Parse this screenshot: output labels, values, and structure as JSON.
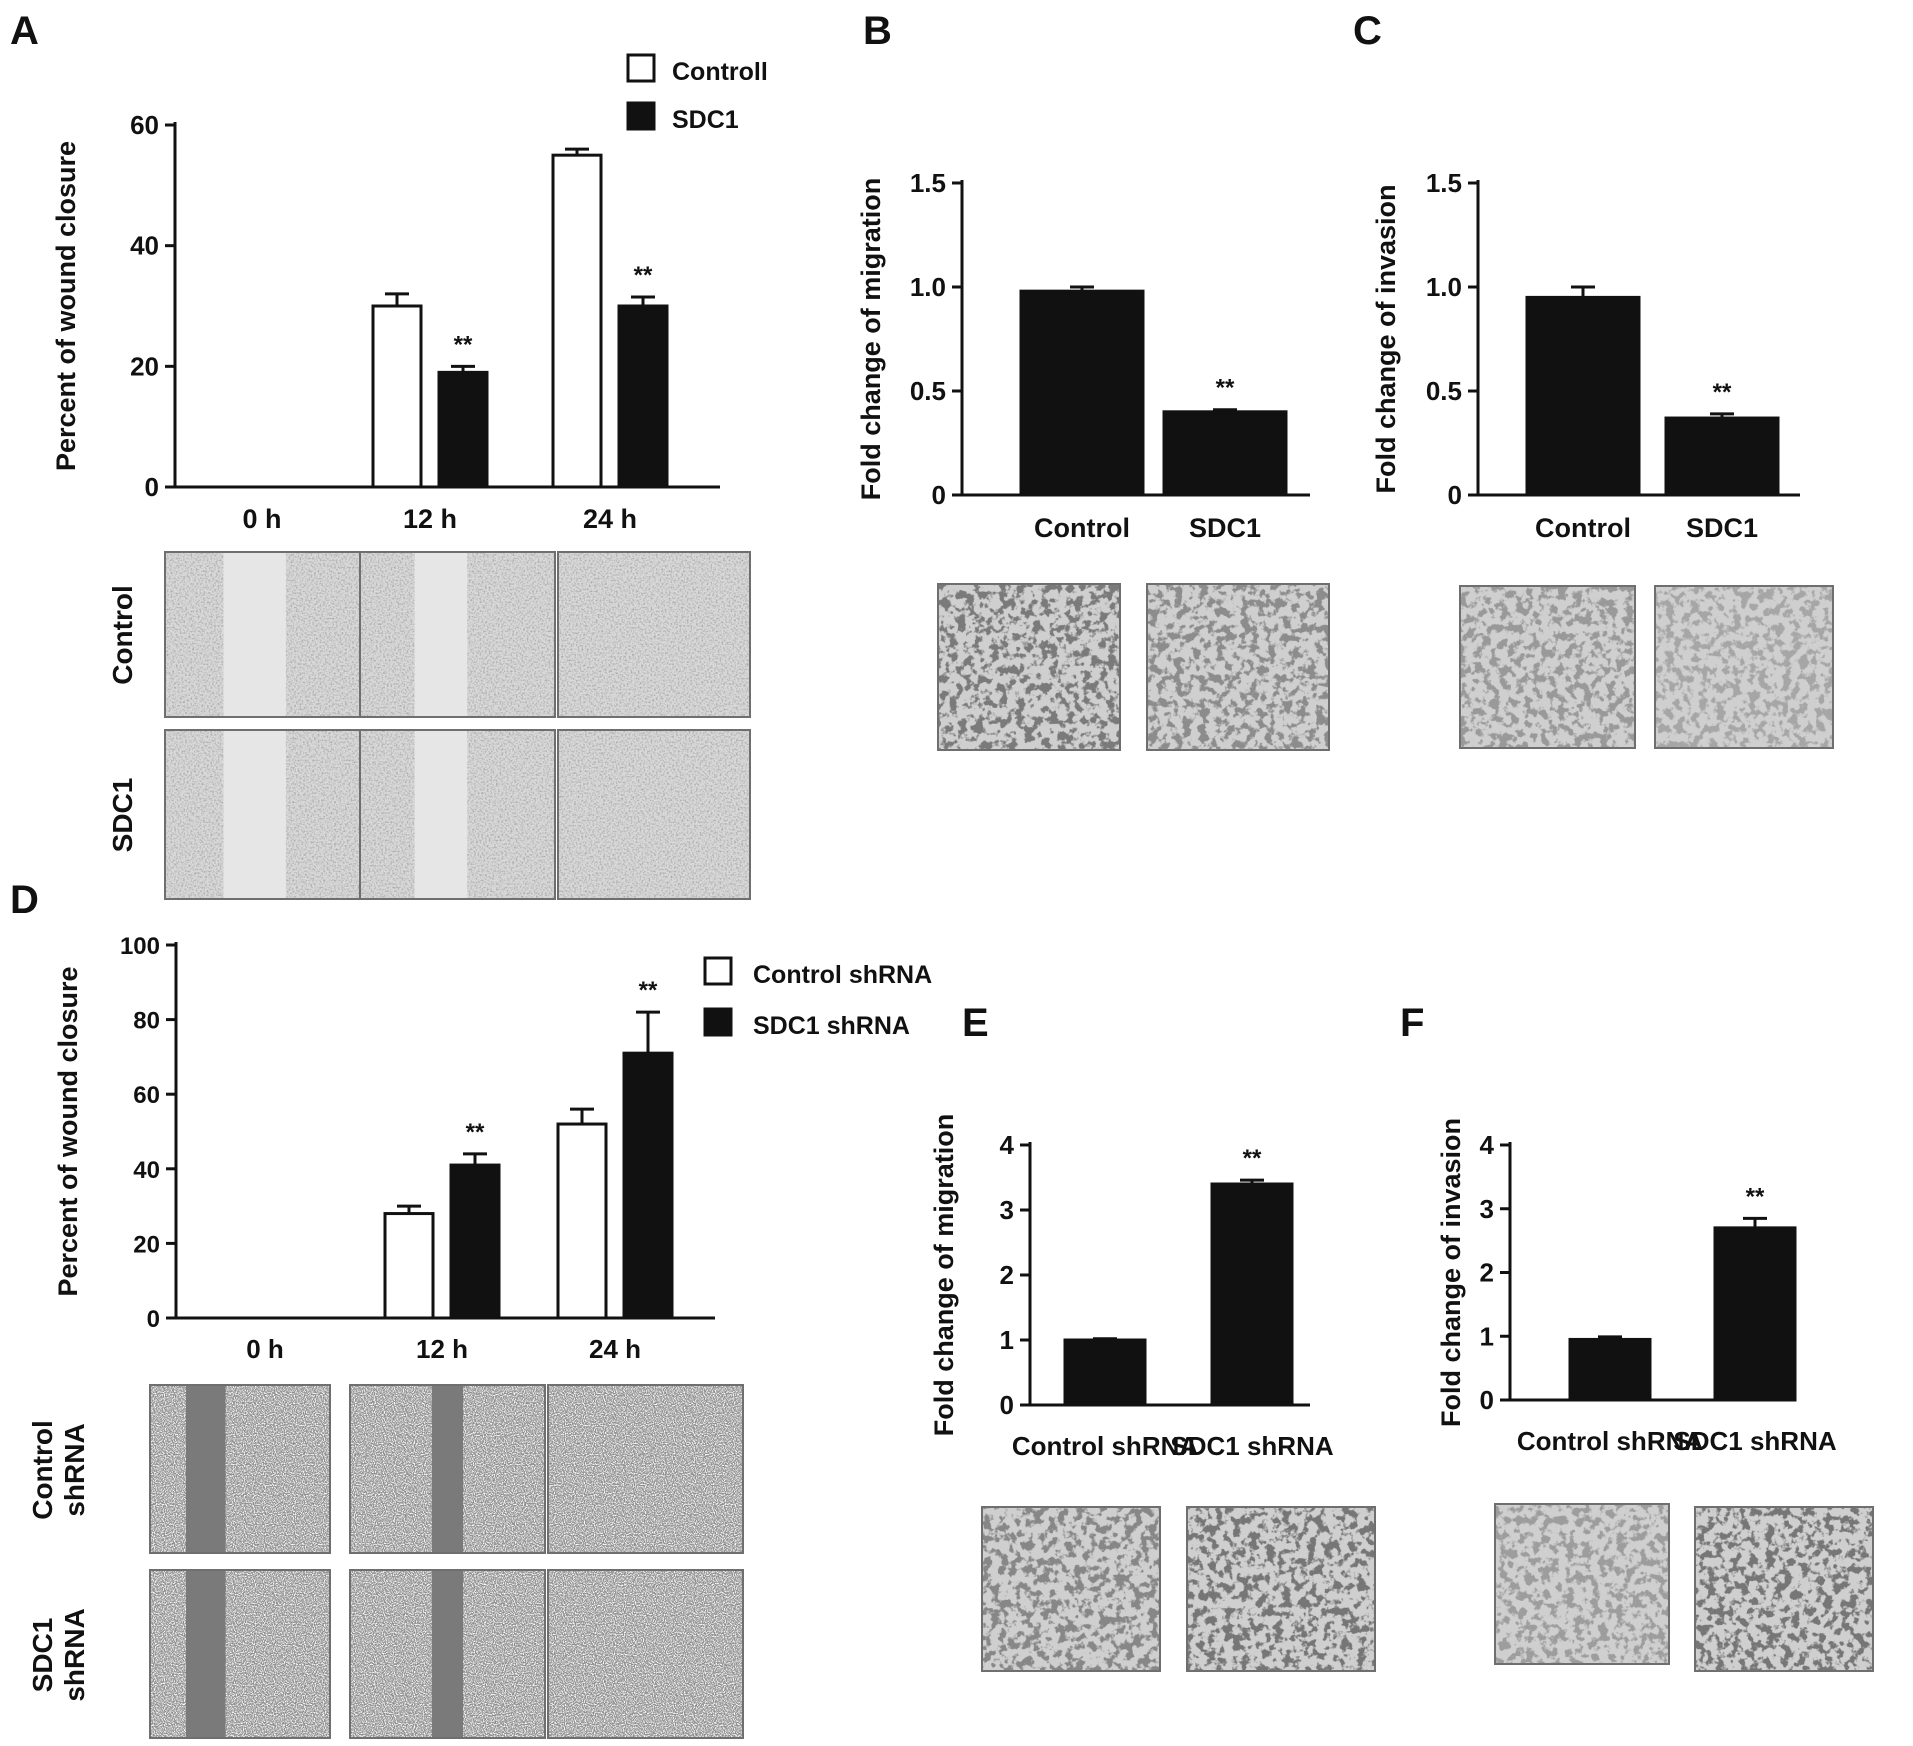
{
  "chart_data": [
    {
      "id": "A",
      "panel_label": "A",
      "type": "bar",
      "categories": [
        "0 h",
        "12 h",
        "24 h"
      ],
      "series": [
        {
          "name": "Controll",
          "values": [
            0,
            30,
            55
          ],
          "errors": [
            0,
            2,
            1
          ],
          "fill": "#ffffff"
        },
        {
          "name": "SDC1",
          "values": [
            0,
            19,
            30
          ],
          "errors": [
            0,
            1,
            1.5
          ],
          "fill": "#111111"
        }
      ],
      "significance": [
        {
          "series": 1,
          "category": 1,
          "label": "**"
        },
        {
          "series": 1,
          "category": 2,
          "label": "**"
        }
      ],
      "ylabel": "Percent of wound closure",
      "ylim": [
        0,
        60
      ],
      "yticks": [
        0,
        20,
        40,
        60
      ],
      "legend": "top-right",
      "image_rows": [
        "Control",
        "SDC1"
      ]
    },
    {
      "id": "B",
      "panel_label": "B",
      "type": "bar",
      "categories": [
        "Control",
        "SDC1"
      ],
      "series": [
        {
          "values": [
            0.98,
            0.4
          ],
          "errors": [
            0.02,
            0.01
          ],
          "fill": "#111111"
        }
      ],
      "significance": [
        {
          "series": 0,
          "category": 1,
          "label": "**"
        }
      ],
      "ylabel": "Fold change of migration",
      "ylim": [
        0,
        1.5
      ],
      "yticks": [
        "0",
        "0.5",
        "1.0",
        "1.5"
      ]
    },
    {
      "id": "C",
      "panel_label": "C",
      "type": "bar",
      "categories": [
        "Control",
        "SDC1"
      ],
      "series": [
        {
          "values": [
            0.95,
            0.37
          ],
          "errors": [
            0.05,
            0.02
          ],
          "fill": "#111111"
        }
      ],
      "significance": [
        {
          "series": 0,
          "category": 1,
          "label": "**"
        }
      ],
      "ylabel": "Fold change of invasion",
      "ylim": [
        0,
        1.5
      ],
      "yticks": [
        "0",
        "0.5",
        "1.0",
        "1.5"
      ]
    },
    {
      "id": "D",
      "panel_label": "D",
      "type": "bar",
      "categories": [
        "0 h",
        "12 h",
        "24 h"
      ],
      "series": [
        {
          "name": "Control shRNA",
          "values": [
            0,
            28,
            52
          ],
          "errors": [
            0,
            2,
            4
          ],
          "fill": "#ffffff"
        },
        {
          "name": "SDC1 shRNA",
          "values": [
            0,
            41,
            71
          ],
          "errors": [
            0,
            3,
            11
          ],
          "fill": "#111111"
        }
      ],
      "significance": [
        {
          "series": 1,
          "category": 1,
          "label": "**"
        },
        {
          "series": 1,
          "category": 2,
          "label": "**"
        }
      ],
      "ylabel": "Percent of wound closure",
      "ylim": [
        0,
        100
      ],
      "yticks": [
        0,
        20,
        40,
        60,
        80,
        100
      ],
      "legend": "top-right",
      "image_rows": [
        "Control shRNA",
        "SDC1 shRNA"
      ]
    },
    {
      "id": "E",
      "panel_label": "E",
      "type": "bar",
      "categories": [
        "Control shRNA",
        "SDC1 shRNA"
      ],
      "series": [
        {
          "values": [
            1.0,
            3.4
          ],
          "errors": [
            0.02,
            0.06
          ],
          "fill": "#111111"
        }
      ],
      "significance": [
        {
          "series": 0,
          "category": 1,
          "label": "**"
        }
      ],
      "ylabel": "Fold change of migration",
      "ylim": [
        0,
        4
      ],
      "yticks": [
        0,
        1,
        2,
        3,
        4
      ]
    },
    {
      "id": "F",
      "panel_label": "F",
      "type": "bar",
      "categories": [
        "Control shRNA",
        "SDC1 shRNA"
      ],
      "series": [
        {
          "values": [
            0.95,
            2.7
          ],
          "errors": [
            0.04,
            0.15
          ],
          "fill": "#111111"
        }
      ],
      "significance": [
        {
          "series": 0,
          "category": 1,
          "label": "**"
        }
      ],
      "ylabel": "Fold change of invasion",
      "ylim": [
        0,
        4
      ],
      "yticks": [
        0,
        1,
        2,
        3,
        4
      ]
    }
  ]
}
